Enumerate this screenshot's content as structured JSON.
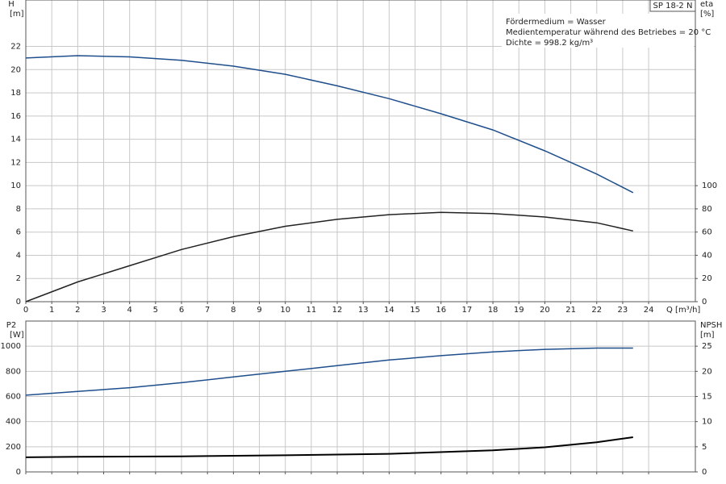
{
  "chart_data": [
    {
      "type": "line",
      "model": "SP 18-2 N",
      "annotations": [
        "Fördermedium = Wasser",
        "Medientemperatur während des Betriebes = 20 °C",
        "Dichte = 998.2 kg/m³"
      ],
      "xlabel": "Q [m³/h]",
      "ylabel": "H",
      "yunit": "[m]",
      "y2label": "eta",
      "y2unit": "[%]",
      "xlim": [
        0,
        25.8
      ],
      "xticks": [
        0,
        1,
        2,
        3,
        4,
        5,
        6,
        7,
        8,
        9,
        10,
        11,
        12,
        13,
        14,
        15,
        16,
        17,
        18,
        19,
        20,
        21,
        22,
        23,
        24
      ],
      "ylim": [
        0,
        26
      ],
      "yticks": [
        0,
        2,
        4,
        6,
        8,
        10,
        12,
        14,
        16,
        18,
        20,
        22
      ],
      "y2lim": [
        0,
        260
      ],
      "y2ticks": [
        0,
        20,
        40,
        60,
        80,
        100
      ],
      "grid": true,
      "series": [
        {
          "color": "#1f4e8c",
          "x": [
            0,
            2,
            4,
            6,
            8,
            10,
            12,
            14,
            16,
            18,
            20,
            22,
            23.4
          ],
          "values": [
            21.0,
            21.2,
            21.1,
            20.8,
            20.3,
            19.6,
            18.6,
            17.5,
            16.2,
            14.8,
            13.0,
            11.0,
            9.4
          ]
        },
        {
          "color": "#222222",
          "axis": "y2",
          "x": [
            0,
            2,
            4,
            6,
            8,
            10,
            12,
            14,
            16,
            18,
            20,
            22,
            23.4
          ],
          "values": [
            0,
            17,
            31,
            45,
            56,
            65,
            71,
            75,
            77,
            76,
            73,
            68,
            61
          ]
        }
      ]
    },
    {
      "type": "line",
      "ylabel": "P2",
      "yunit": "[W]",
      "y2label": "NPSH",
      "y2unit": "[m]",
      "xlim": [
        0,
        25.8
      ],
      "ylim": [
        0,
        1200
      ],
      "yticks": [
        0,
        200,
        400,
        600,
        800,
        1000
      ],
      "y2lim": [
        0,
        30
      ],
      "y2ticks": [
        0,
        5,
        10,
        15,
        20,
        25
      ],
      "grid": true,
      "series": [
        {
          "color": "#1f4e8c",
          "x": [
            0,
            2,
            4,
            6,
            8,
            10,
            12,
            14,
            16,
            18,
            20,
            22,
            23.4
          ],
          "values": [
            610,
            640,
            670,
            710,
            755,
            800,
            845,
            890,
            925,
            955,
            975,
            985,
            985
          ]
        },
        {
          "color": "#000000",
          "axis": "y2",
          "x": [
            0,
            2,
            6,
            10,
            14,
            18,
            20,
            22,
            23.4
          ],
          "values": [
            2.9,
            3.0,
            3.1,
            3.3,
            3.6,
            4.3,
            4.9,
            5.9,
            6.9
          ]
        }
      ]
    }
  ]
}
